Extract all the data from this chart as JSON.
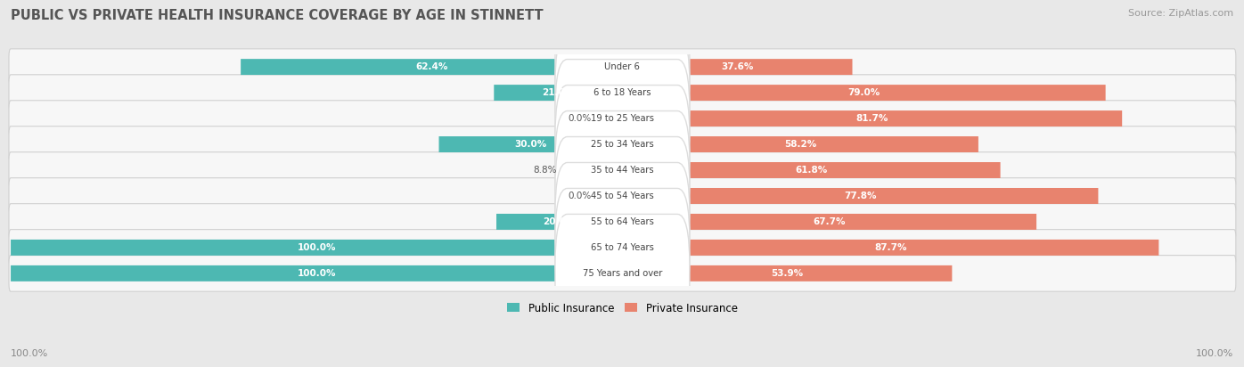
{
  "title": "PUBLIC VS PRIVATE HEALTH INSURANCE COVERAGE BY AGE IN STINNETT",
  "source": "Source: ZipAtlas.com",
  "categories": [
    "Under 6",
    "6 to 18 Years",
    "19 to 25 Years",
    "25 to 34 Years",
    "35 to 44 Years",
    "45 to 54 Years",
    "55 to 64 Years",
    "65 to 74 Years",
    "75 Years and over"
  ],
  "public_values": [
    62.4,
    21.0,
    0.0,
    30.0,
    8.8,
    0.0,
    20.6,
    100.0,
    100.0
  ],
  "private_values": [
    37.6,
    79.0,
    81.7,
    58.2,
    61.8,
    77.8,
    67.7,
    87.7,
    53.9
  ],
  "public_color": "#4db8b2",
  "private_color": "#e8836e",
  "public_color_light": "#a8dbd8",
  "private_color_light": "#f2b8aa",
  "public_label": "Public Insurance",
  "private_label": "Private Insurance",
  "bg_color": "#e8e8e8",
  "bar_bg_color": "#f7f7f7",
  "row_edge_color": "#d0d0d0",
  "title_color": "#555555",
  "axis_label_left": "100.0%",
  "axis_label_right": "100.0%",
  "max_value": 100.0
}
